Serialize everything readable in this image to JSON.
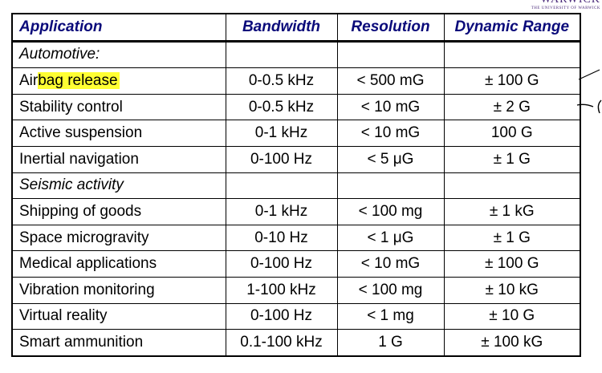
{
  "logo": {
    "name": "WARWICK",
    "subtitle": "THE UNIVERSITY OF WARWICK"
  },
  "table": {
    "headers": [
      "Application",
      "Bandwidth",
      "Resolution",
      "Dynamic Range"
    ],
    "rows": [
      {
        "name": "Automotive:",
        "section": true,
        "bandwidth": "",
        "resolution": "",
        "range": ""
      },
      {
        "name_pre": "Air",
        "name_hl": "bag release",
        "bandwidth": "0-0.5 kHz",
        "resolution": "< 500 mG",
        "range": "± 100 G"
      },
      {
        "name": "Stability control",
        "bandwidth": "0-0.5 kHz",
        "resolution": "< 10 mG",
        "range": "± 2 G"
      },
      {
        "name": "Active suspension",
        "bandwidth": "0-1 kHz",
        "resolution": "< 10 mG",
        "range": "100 G"
      },
      {
        "name": "Inertial navigation",
        "bandwidth": "0-100 Hz",
        "resolution": "< 5 μG",
        "range": "± 1 G"
      },
      {
        "name": "Seismic activity",
        "section": true,
        "bandwidth": "",
        "resolution": "",
        "range": ""
      },
      {
        "name": "Shipping of goods",
        "bandwidth": "0-1 kHz",
        "resolution": "< 100 mg",
        "range": "± 1 kG"
      },
      {
        "name": "Space microgravity",
        "bandwidth": "0-10 Hz",
        "resolution": "< 1 μG",
        "range": "± 1 G"
      },
      {
        "name": "Medical applications",
        "bandwidth": "0-100 Hz",
        "resolution": "< 10 mG",
        "range": "± 100 G"
      },
      {
        "name": "Vibration monitoring",
        "bandwidth": "1-100 kHz",
        "resolution": "< 100 mg",
        "range": "± 10 kG"
      },
      {
        "name": "Virtual reality",
        "bandwidth": "0-100 Hz",
        "resolution": "< 1 mg",
        "range": "± 10 G"
      },
      {
        "name": "Smart ammunition",
        "bandwidth": "0.1-100 kHz",
        "resolution": "1 G",
        "range": "± 100 kG"
      }
    ]
  },
  "colors": {
    "header_text": "#0a0a7a",
    "highlight": "#ffff33",
    "logo": "#4a2a7a"
  }
}
